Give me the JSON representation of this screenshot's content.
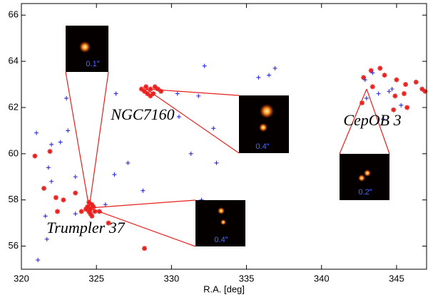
{
  "chart_data": {
    "type": "scatter",
    "xlabel": "R.A. [deg]",
    "xlim": [
      320,
      347
    ],
    "xticks": [
      320,
      325,
      330,
      335,
      340,
      345
    ],
    "ylim": [
      55,
      66.5
    ],
    "yticks": [
      56,
      58,
      60,
      62,
      64,
      66
    ],
    "annotations": [
      "NGC7160",
      "Trumpler 37",
      "CepOB 3",
      "0.1\"",
      "0.4\"",
      "0.4\"",
      "0.2\""
    ],
    "series": [
      {
        "name": "red",
        "color": "#e8201e",
        "marker": "star",
        "x": [
          324.4,
          324.6,
          324.8,
          324.5,
          324.7,
          324.3,
          324.9,
          324.6,
          324.5,
          324.0,
          325.2,
          324.7,
          320.9,
          321.9,
          321.5,
          322.3,
          322.8,
          323.6,
          322.4,
          325.8,
          328.2,
          328.0,
          328.3,
          328.6,
          328.9,
          329.1,
          328.4,
          328.8,
          328.2,
          329.3,
          328.6,
          342.8,
          343.3,
          344.2,
          345.0,
          345.6,
          346.7,
          346.9,
          343.4,
          344.9,
          342.7,
          344.8,
          345.7,
          346.3,
          343.9,
          345.5
        ],
        "y": [
          57.7,
          57.6,
          57.7,
          57.5,
          57.8,
          57.6,
          57.5,
          57.4,
          57.9,
          57.5,
          57.5,
          57.3,
          59.9,
          60.1,
          58.5,
          58.1,
          58.0,
          58.3,
          57.5,
          57.0,
          55.9,
          62.8,
          62.9,
          62.8,
          62.9,
          62.8,
          62.6,
          62.6,
          62.7,
          62.7,
          62.5,
          63.3,
          63.6,
          63.4,
          63.2,
          63.0,
          62.8,
          62.7,
          62.9,
          62.5,
          62.2,
          61.9,
          62.0,
          63.1,
          63.7,
          62.6
        ]
      },
      {
        "name": "blue",
        "color": "#2a2ae0",
        "marker": "plus",
        "x": [
          321.0,
          321.6,
          321.7,
          321.1,
          322.0,
          321.8,
          322.0,
          323.0,
          323.1,
          322.6,
          323.6,
          326.3,
          326.2,
          327.1,
          328.1,
          330.5,
          330.4,
          331.8,
          332.2,
          332.8,
          333.0,
          331.3,
          332.0,
          335.8,
          336.5,
          336.9,
          342.9,
          343.4,
          343.8,
          344.5,
          345.3,
          344.1,
          343.0,
          344.7,
          325.6,
          323.6
        ],
        "y": [
          60.9,
          57.3,
          56.3,
          55.4,
          60.4,
          59.4,
          58.8,
          62.4,
          61.0,
          60.5,
          59.0,
          62.6,
          59.1,
          59.6,
          58.4,
          61.6,
          62.6,
          62.5,
          63.8,
          61.1,
          59.6,
          60.0,
          58.0,
          63.3,
          63.4,
          63.7,
          63.2,
          63.5,
          62.6,
          62.7,
          62.1,
          61.5,
          62.4,
          62.8,
          57.8,
          57.4
        ]
      }
    ]
  }
}
